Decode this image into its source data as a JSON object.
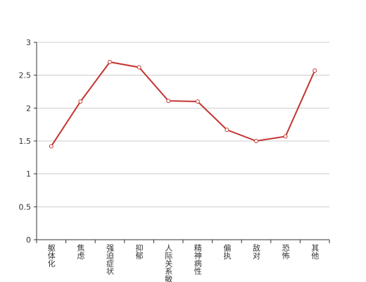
{
  "chart_data": {
    "type": "line",
    "categories": [
      "躯体化",
      "焦虑",
      "强迫症状",
      "抑郁",
      "人际关系敏感",
      "精神病性",
      "偏执",
      "敌对",
      "恐怖",
      "其他"
    ],
    "values": [
      1.42,
      2.1,
      2.7,
      2.62,
      2.11,
      2.1,
      1.67,
      1.5,
      1.57,
      2.57
    ],
    "color": "#c23531",
    "ylim": [
      0,
      3
    ],
    "yticks": [
      0,
      0.5,
      1,
      1.5,
      2,
      2.5,
      3
    ],
    "grid": true
  }
}
